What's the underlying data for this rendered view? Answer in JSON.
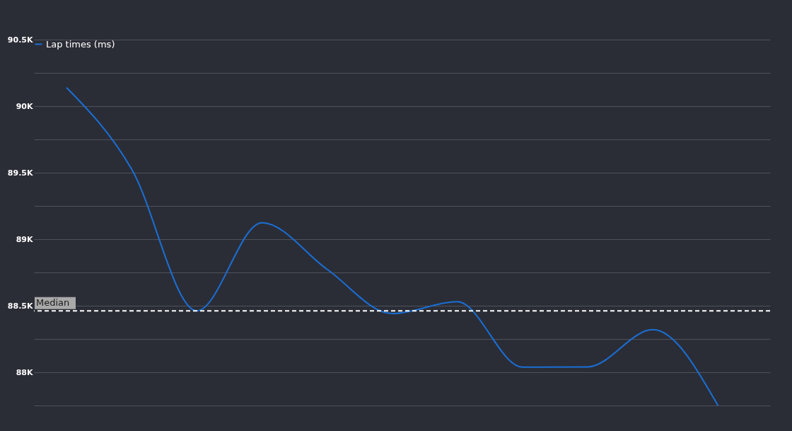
{
  "chart_data": {
    "type": "line",
    "categories": [
      null,
      null,
      null,
      null,
      null,
      null,
      null,
      null,
      null,
      null,
      null
    ],
    "series": [
      {
        "name": "Lap times (ms)",
        "color": "#1a6fd6",
        "values": [
          90140,
          89527,
          88462,
          89124,
          88774,
          88441,
          88530,
          88038,
          88040,
          88320,
          87750
        ]
      }
    ],
    "ylim": [
      87750,
      90500
    ],
    "yticks": [
      {
        "value": 87750,
        "label": null
      },
      {
        "value": 88000,
        "label": "88K"
      },
      {
        "value": 88250,
        "label": null
      },
      {
        "value": 88500,
        "label": "88.5K"
      },
      {
        "value": 88750,
        "label": null
      },
      {
        "value": 89000,
        "label": "89K"
      },
      {
        "value": 89250,
        "label": null
      },
      {
        "value": 89500,
        "label": "89.5K"
      },
      {
        "value": 89750,
        "label": null
      },
      {
        "value": 90000,
        "label": "90K"
      },
      {
        "value": 90250,
        "label": null
      },
      {
        "value": 90500,
        "label": "90.5K"
      }
    ],
    "ref_lines": [
      {
        "axis": "y",
        "value": 88462,
        "label": "Median",
        "color": "#ffffff",
        "line_style": "dashed"
      }
    ],
    "grid": "y",
    "legend": "top left",
    "line_style": "solid",
    "marker": "none"
  }
}
